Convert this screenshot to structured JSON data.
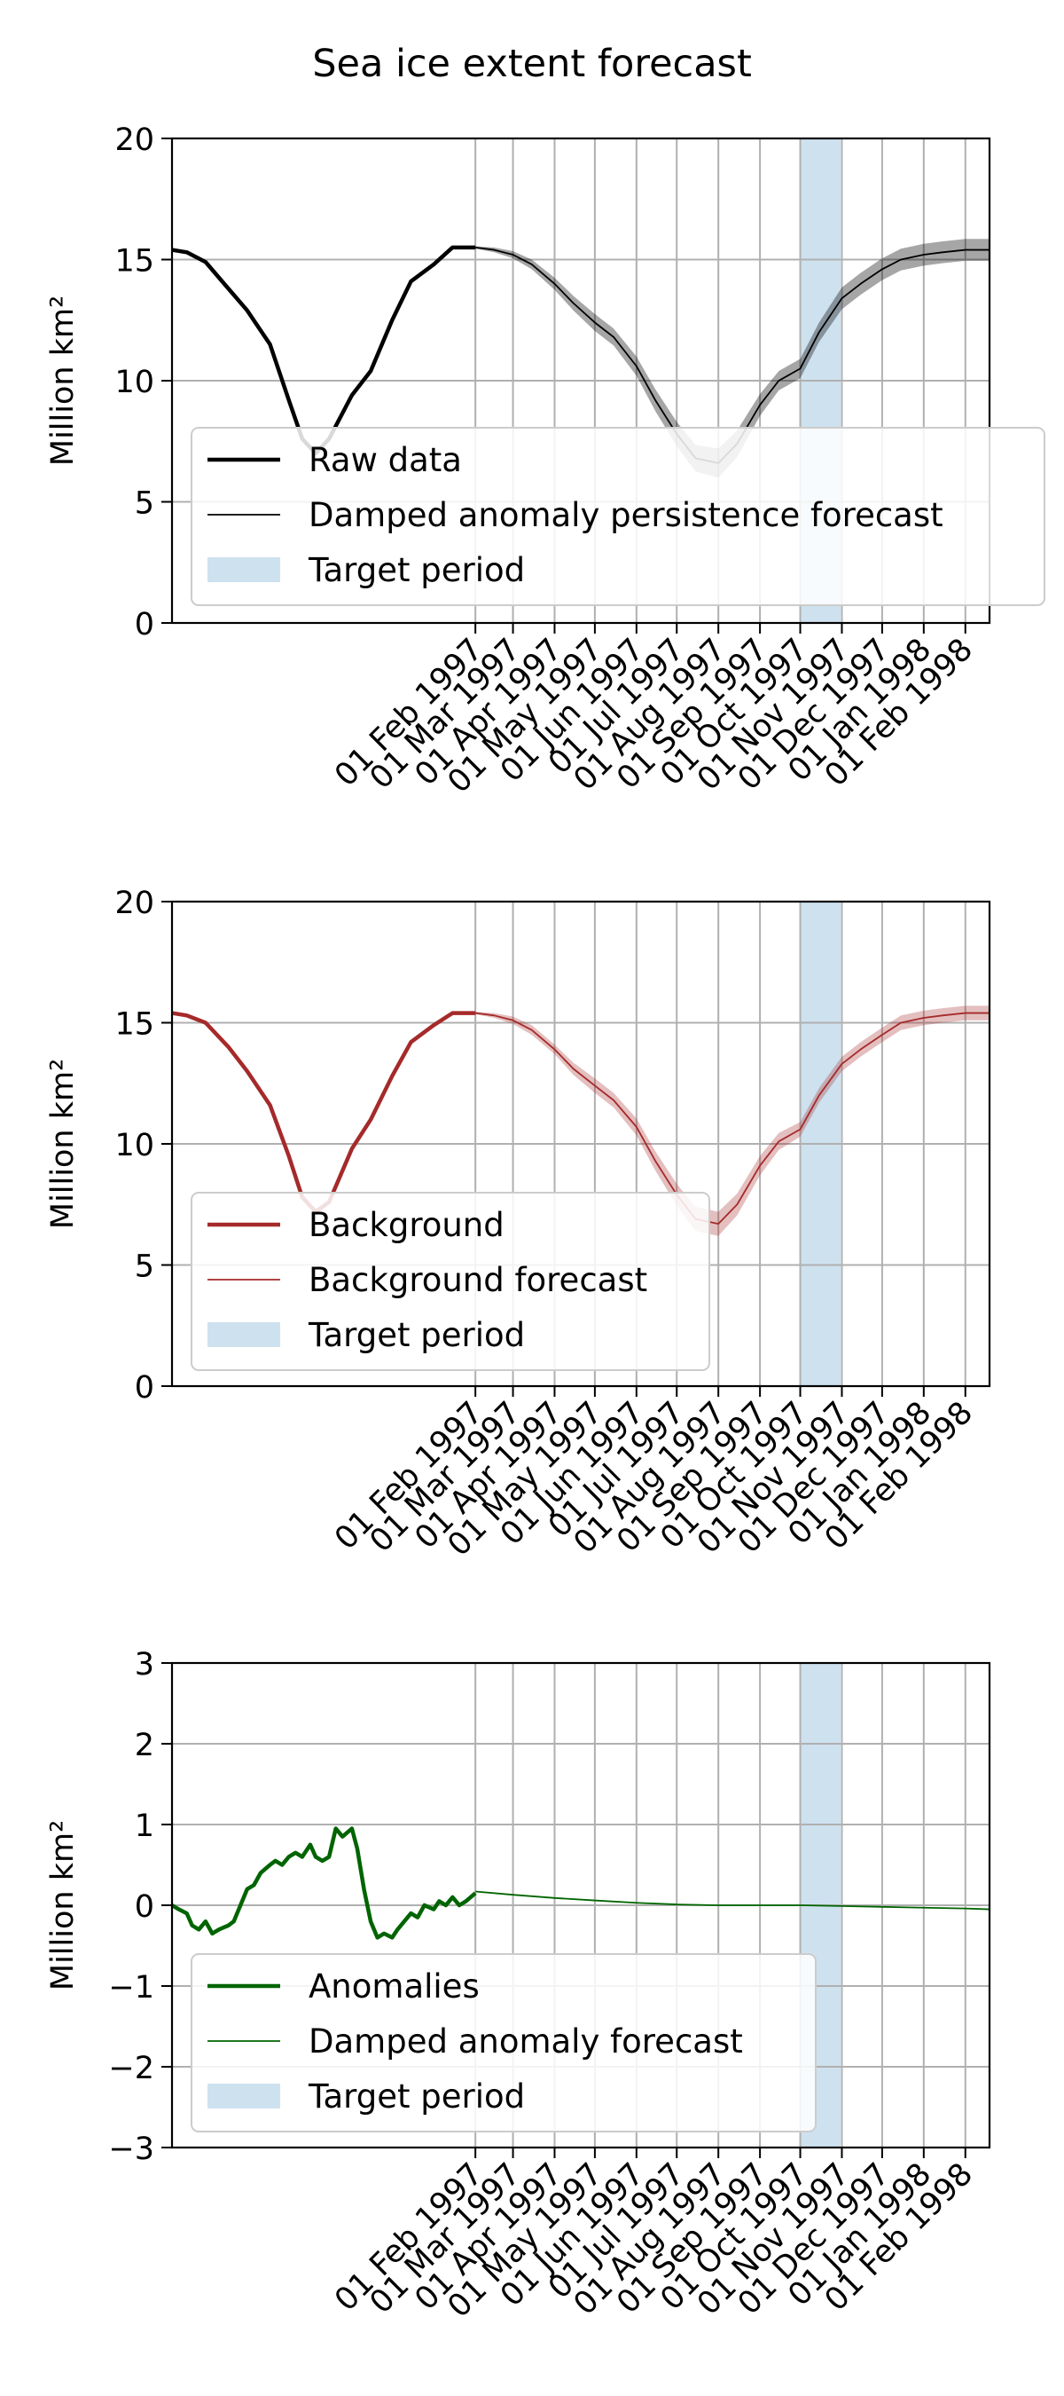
{
  "figure": {
    "title": "Sea ice extent forecast"
  },
  "chart_data": [
    {
      "type": "line",
      "ylabel": "Million km²",
      "ylim": [
        0,
        20
      ],
      "yticks": [
        0,
        5,
        10,
        15,
        20
      ],
      "xlim": [
        "1996-06-20",
        "1998-02-19"
      ],
      "xticks": [
        "1997-02-01",
        "1997-03-01",
        "1997-04-01",
        "1997-05-01",
        "1997-06-01",
        "1997-07-01",
        "1997-08-01",
        "1997-09-01",
        "1997-10-01",
        "1997-11-01",
        "1997-12-01",
        "1998-01-01",
        "1998-02-01"
      ],
      "xtick_labels": [
        "01 Feb 1997",
        "01 Mar 1997",
        "01 Apr 1997",
        "01 May 1997",
        "01 Jun 1997",
        "01 Jul 1997",
        "01 Aug 1997",
        "01 Sep 1997",
        "01 Oct 1997",
        "01 Nov 1997",
        "01 Dec 1997",
        "01 Jan 1998",
        "01 Feb 1998"
      ],
      "grid": true,
      "target_period": [
        "1997-10-01",
        "1997-10-31"
      ],
      "legend_position": "lower right",
      "legend": [
        "Raw data",
        "Damped anomaly persistence forecast",
        "Target period"
      ],
      "series": [
        {
          "name": "Raw data",
          "color": "#000000",
          "x": [
            "1996-06-20",
            "1996-07-01",
            "1996-07-15",
            "1996-08-01",
            "1996-08-15",
            "1996-09-01",
            "1996-09-15",
            "1996-09-25",
            "1996-10-05",
            "1996-10-15",
            "1996-11-01",
            "1996-11-15",
            "1996-12-01",
            "1996-12-15",
            "1997-01-01",
            "1997-01-15",
            "1997-02-01"
          ],
          "y": [
            15.4,
            15.3,
            14.9,
            13.8,
            12.9,
            11.5,
            9.2,
            7.6,
            7.0,
            7.6,
            9.4,
            10.4,
            12.5,
            14.1,
            14.8,
            15.5,
            15.5
          ]
        },
        {
          "name": "Damped anomaly persistence forecast",
          "color": "#000000",
          "x": [
            "1997-02-01",
            "1997-02-15",
            "1997-03-01",
            "1997-03-15",
            "1997-04-01",
            "1997-04-15",
            "1997-05-01",
            "1997-05-15",
            "1997-06-01",
            "1997-06-15",
            "1997-07-01",
            "1997-07-15",
            "1997-08-01",
            "1997-08-15",
            "1997-09-01",
            "1997-09-15",
            "1997-10-01",
            "1997-10-15",
            "1997-11-01",
            "1997-11-15",
            "1997-12-01",
            "1997-12-15",
            "1998-01-01",
            "1998-01-15",
            "1998-02-01",
            "1998-02-19"
          ],
          "y": [
            15.5,
            15.4,
            15.2,
            14.8,
            14.0,
            13.2,
            12.4,
            11.8,
            10.6,
            9.2,
            7.8,
            6.8,
            6.6,
            7.4,
            9.0,
            10.0,
            10.5,
            12.0,
            13.4,
            14.0,
            14.6,
            15.0,
            15.2,
            15.3,
            15.4,
            15.4
          ],
          "band": [
            0.05,
            0.1,
            0.15,
            0.2,
            0.25,
            0.3,
            0.35,
            0.35,
            0.4,
            0.45,
            0.5,
            0.55,
            0.6,
            0.55,
            0.45,
            0.4,
            0.4,
            0.4,
            0.45,
            0.45,
            0.45,
            0.45,
            0.45,
            0.45,
            0.45,
            0.45
          ]
        }
      ]
    },
    {
      "type": "line",
      "ylabel": "Million km²",
      "ylim": [
        0,
        20
      ],
      "yticks": [
        0,
        5,
        10,
        15,
        20
      ],
      "xlim": [
        "1996-06-20",
        "1998-02-19"
      ],
      "xticks": [
        "1997-02-01",
        "1997-03-01",
        "1997-04-01",
        "1997-05-01",
        "1997-06-01",
        "1997-07-01",
        "1997-08-01",
        "1997-09-01",
        "1997-10-01",
        "1997-11-01",
        "1997-12-01",
        "1998-01-01",
        "1998-02-01"
      ],
      "xtick_labels": [
        "01 Feb 1997",
        "01 Mar 1997",
        "01 Apr 1997",
        "01 May 1997",
        "01 Jun 1997",
        "01 Jul 1997",
        "01 Aug 1997",
        "01 Sep 1997",
        "01 Oct 1997",
        "01 Nov 1997",
        "01 Dec 1997",
        "01 Jan 1998",
        "01 Feb 1998"
      ],
      "grid": true,
      "target_period": [
        "1997-10-01",
        "1997-10-31"
      ],
      "legend_position": "lower left",
      "legend": [
        "Background",
        "Background forecast",
        "Target period"
      ],
      "series": [
        {
          "name": "Background",
          "color": "#a52a2a",
          "x": [
            "1996-06-20",
            "1996-07-01",
            "1996-07-15",
            "1996-08-01",
            "1996-08-15",
            "1996-09-01",
            "1996-09-15",
            "1996-09-25",
            "1996-10-05",
            "1996-10-15",
            "1996-11-01",
            "1996-11-15",
            "1996-12-01",
            "1996-12-15",
            "1997-01-01",
            "1997-01-15",
            "1997-02-01"
          ],
          "y": [
            15.4,
            15.3,
            15.0,
            14.0,
            13.0,
            11.6,
            9.5,
            7.8,
            7.2,
            7.6,
            9.8,
            11.0,
            12.8,
            14.2,
            14.9,
            15.4,
            15.4
          ]
        },
        {
          "name": "Background forecast",
          "color": "#a52a2a",
          "x": [
            "1997-02-01",
            "1997-02-15",
            "1997-03-01",
            "1997-03-15",
            "1997-04-01",
            "1997-04-15",
            "1997-05-01",
            "1997-05-15",
            "1997-06-01",
            "1997-06-15",
            "1997-07-01",
            "1997-07-15",
            "1997-08-01",
            "1997-08-15",
            "1997-09-01",
            "1997-09-15",
            "1997-10-01",
            "1997-10-15",
            "1997-11-01",
            "1997-11-15",
            "1997-12-01",
            "1997-12-15",
            "1998-01-01",
            "1998-01-15",
            "1998-02-01",
            "1998-02-19"
          ],
          "y": [
            15.4,
            15.3,
            15.1,
            14.7,
            13.9,
            13.1,
            12.4,
            11.8,
            10.7,
            9.3,
            7.9,
            6.9,
            6.7,
            7.5,
            9.1,
            10.1,
            10.6,
            12.0,
            13.3,
            13.9,
            14.5,
            15.0,
            15.2,
            15.3,
            15.4,
            15.4
          ],
          "band": [
            0.05,
            0.1,
            0.15,
            0.2,
            0.2,
            0.25,
            0.3,
            0.3,
            0.35,
            0.4,
            0.45,
            0.5,
            0.5,
            0.45,
            0.4,
            0.35,
            0.3,
            0.3,
            0.3,
            0.3,
            0.3,
            0.3,
            0.3,
            0.3,
            0.3,
            0.3
          ]
        }
      ]
    },
    {
      "type": "line",
      "ylabel": "Million km²",
      "ylim": [
        -3,
        3
      ],
      "yticks": [
        -3,
        -2,
        -1,
        0,
        1,
        2,
        3
      ],
      "ytick_labels": [
        "−3",
        "−2",
        "−1",
        "0",
        "1",
        "2",
        "3"
      ],
      "xlim": [
        "1996-06-20",
        "1998-02-19"
      ],
      "xticks": [
        "1997-02-01",
        "1997-03-01",
        "1997-04-01",
        "1997-05-01",
        "1997-06-01",
        "1997-07-01",
        "1997-08-01",
        "1997-09-01",
        "1997-10-01",
        "1997-11-01",
        "1997-12-01",
        "1998-01-01",
        "1998-02-01"
      ],
      "xtick_labels": [
        "01 Feb 1997",
        "01 Mar 1997",
        "01 Apr 1997",
        "01 May 1997",
        "01 Jun 1997",
        "01 Jul 1997",
        "01 Aug 1997",
        "01 Sep 1997",
        "01 Oct 1997",
        "01 Nov 1997",
        "01 Dec 1997",
        "01 Jan 1998",
        "01 Feb 1998"
      ],
      "grid": true,
      "target_period": [
        "1997-10-01",
        "1997-10-31"
      ],
      "legend_position": "lower left",
      "legend": [
        "Anomalies",
        "Damped anomaly forecast",
        "Target period"
      ],
      "series": [
        {
          "name": "Anomalies",
          "color": "#006400",
          "x": [
            "1996-06-20",
            "1996-06-25",
            "1996-07-01",
            "1996-07-05",
            "1996-07-10",
            "1996-07-15",
            "1996-07-20",
            "1996-07-25",
            "1996-08-01",
            "1996-08-05",
            "1996-08-10",
            "1996-08-15",
            "1996-08-20",
            "1996-08-25",
            "1996-09-01",
            "1996-09-05",
            "1996-09-10",
            "1996-09-15",
            "1996-09-20",
            "1996-09-25",
            "1996-10-01",
            "1996-10-05",
            "1996-10-10",
            "1996-10-15",
            "1996-10-20",
            "1996-10-25",
            "1996-11-01",
            "1996-11-05",
            "1996-11-10",
            "1996-11-15",
            "1996-11-20",
            "1996-11-25",
            "1996-12-01",
            "1996-12-05",
            "1996-12-10",
            "1996-12-15",
            "1996-12-20",
            "1996-12-25",
            "1997-01-01",
            "1997-01-05",
            "1997-01-10",
            "1997-01-15",
            "1997-01-20",
            "1997-01-25",
            "1997-02-01"
          ],
          "y": [
            0.0,
            -0.05,
            -0.1,
            -0.25,
            -0.3,
            -0.2,
            -0.35,
            -0.3,
            -0.25,
            -0.2,
            0.0,
            0.2,
            0.25,
            0.4,
            0.5,
            0.55,
            0.5,
            0.6,
            0.65,
            0.6,
            0.75,
            0.6,
            0.55,
            0.6,
            0.95,
            0.85,
            0.95,
            0.7,
            0.2,
            -0.2,
            -0.4,
            -0.35,
            -0.4,
            -0.3,
            -0.2,
            -0.1,
            -0.15,
            0.0,
            -0.05,
            0.05,
            0.0,
            0.1,
            0.0,
            0.05,
            0.15
          ]
        },
        {
          "name": "Damped anomaly forecast",
          "color": "#006400",
          "x": [
            "1997-02-01",
            "1997-03-01",
            "1997-04-01",
            "1997-05-01",
            "1997-06-01",
            "1997-07-01",
            "1997-08-01",
            "1997-09-01",
            "1997-10-01",
            "1997-11-01",
            "1997-12-01",
            "1998-01-01",
            "1998-02-01",
            "1998-02-19"
          ],
          "y": [
            0.17,
            0.13,
            0.09,
            0.06,
            0.03,
            0.01,
            0.0,
            0.0,
            0.0,
            -0.01,
            -0.02,
            -0.03,
            -0.04,
            -0.05
          ]
        }
      ]
    }
  ]
}
